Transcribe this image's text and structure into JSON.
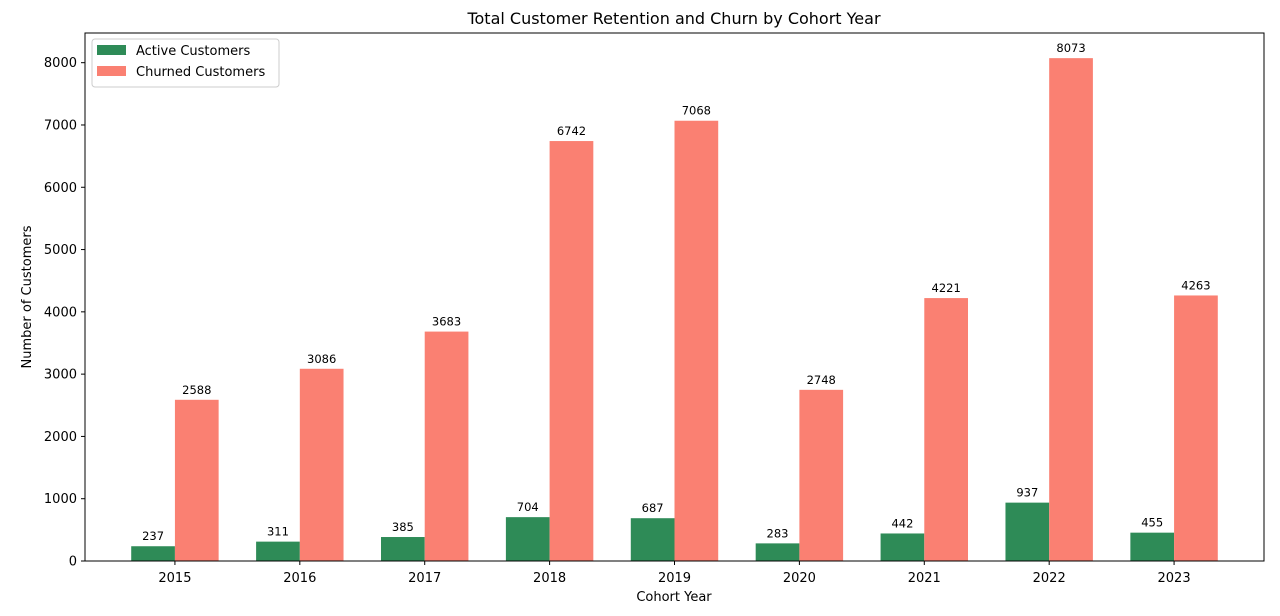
{
  "chart_data": {
    "type": "bar",
    "title": "Total Customer Retention and Churn by Cohort Year",
    "xlabel": "Cohort Year",
    "ylabel": "Number of Customers",
    "ylim": [
      0,
      8476.65
    ],
    "yticks": [
      0,
      1000,
      2000,
      3000,
      4000,
      5000,
      6000,
      7000,
      8000
    ],
    "grid": false,
    "legend_position": "upper-left",
    "categories": [
      "2015",
      "2016",
      "2017",
      "2018",
      "2019",
      "2020",
      "2021",
      "2022",
      "2023"
    ],
    "series": [
      {
        "name": "Active Customers",
        "color": "#2e8b57",
        "values": [
          237,
          311,
          385,
          704,
          687,
          283,
          442,
          937,
          455
        ]
      },
      {
        "name": "Churned Customers",
        "color": "#fa8072",
        "values": [
          2588,
          3086,
          3683,
          6742,
          7068,
          2748,
          4221,
          8073,
          4263
        ]
      }
    ]
  }
}
